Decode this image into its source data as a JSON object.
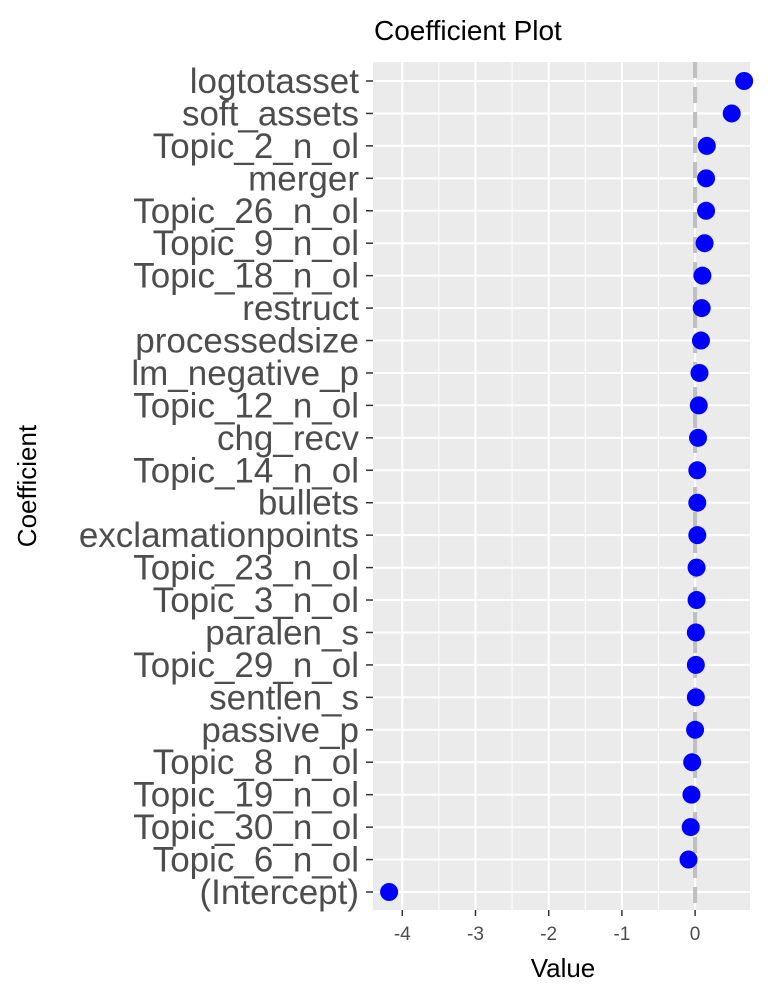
{
  "chart_data": {
    "type": "scatter",
    "title": "Coefficient Plot",
    "xlabel": "Value",
    "ylabel": "Coefficient",
    "xlim": [
      -4.4,
      0.75
    ],
    "xticks": [
      -4,
      -3,
      -2,
      -1,
      0
    ],
    "xtick_labels": [
      "-4",
      "-3",
      "-2",
      "-1",
      "0"
    ],
    "reference_line": 0,
    "grid": true,
    "colors": {
      "panel": "#ebebeb",
      "grid": "#ffffff",
      "point": "#0000ff",
      "reference": "#bfbfbf"
    },
    "categories": [
      "logtotasset",
      "soft_assets",
      "Topic_2_n_ol",
      "merger",
      "Topic_26_n_ol",
      "Topic_9_n_ol",
      "Topic_18_n_ol",
      "restruct",
      "processedsize",
      "lm_negative_p",
      "Topic_12_n_ol",
      "chg_recv",
      "Topic_14_n_ol",
      "bullets",
      "exclamationpoints",
      "Topic_23_n_ol",
      "Topic_3_n_ol",
      "paralen_s",
      "Topic_29_n_ol",
      "sentlen_s",
      "passive_p",
      "Topic_8_n_ol",
      "Topic_19_n_ol",
      "Topic_30_n_ol",
      "Topic_6_n_ol",
      "(Intercept)"
    ],
    "values": [
      0.67,
      0.5,
      0.16,
      0.15,
      0.15,
      0.13,
      0.1,
      0.09,
      0.08,
      0.06,
      0.05,
      0.04,
      0.03,
      0.03,
      0.03,
      0.02,
      0.02,
      0.01,
      0.01,
      0.01,
      0.0,
      -0.04,
      -0.05,
      -0.06,
      -0.09,
      -4.18
    ]
  }
}
